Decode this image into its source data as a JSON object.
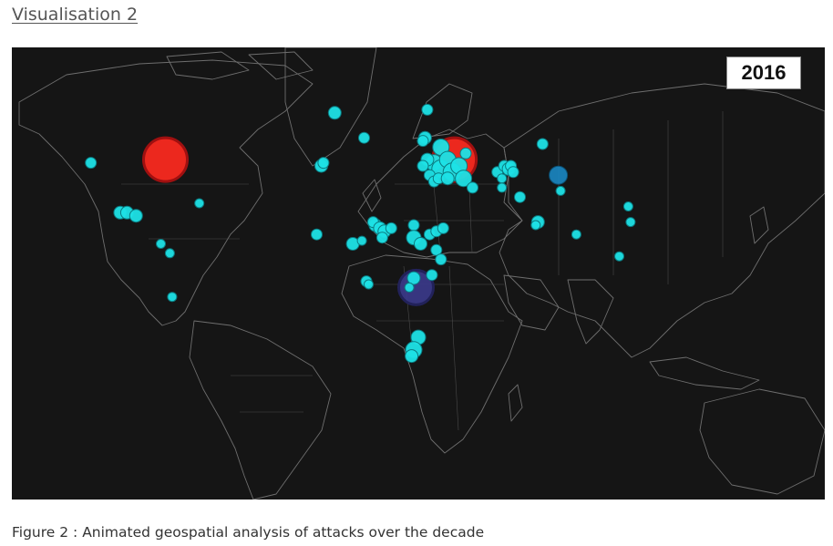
{
  "heading": "Visualisation 2",
  "year": "2016",
  "caption": "Figure 2 : Animated geospatial analysis of attacks over the decade",
  "colors": {
    "background": "#151515",
    "land_border": "#6e6e6e",
    "marker_default": "#1de1e6",
    "marker_stroke": "#0b7a80",
    "marker_large_red": "#ff2a1f",
    "marker_large_purple": "#3b3a8a",
    "marker_blue": "#1a86c0"
  },
  "markers": [
    {
      "label": "north-america-large",
      "lon": -97,
      "lat": 49,
      "r": 24,
      "color": "#ff2a1f",
      "stroke": "#a01010"
    },
    {
      "label": "ukraine-large",
      "lon": 31,
      "lat": 49,
      "r": 24,
      "color": "#ff2a1f",
      "stroke": "#a01010"
    },
    {
      "label": "central-africa-large",
      "lon": 14,
      "lat": 8,
      "r": 19,
      "color": "#3b3a8a",
      "stroke": "#22225a"
    },
    {
      "label": "central-asia",
      "lon": 77,
      "lat": 44,
      "r": 10,
      "color": "#1a86c0",
      "stroke": "#0b4e70"
    },
    {
      "lon": -22,
      "lat": 64,
      "r": 7
    },
    {
      "lon": -130,
      "lat": 48,
      "r": 6
    },
    {
      "lon": -117,
      "lat": 32,
      "r": 7
    },
    {
      "lon": -114,
      "lat": 32,
      "r": 7
    },
    {
      "lon": -110,
      "lat": 31,
      "r": 7
    },
    {
      "lon": -82,
      "lat": 35,
      "r": 5
    },
    {
      "lon": -99,
      "lat": 22,
      "r": 5
    },
    {
      "lon": -95,
      "lat": 19,
      "r": 5
    },
    {
      "lon": -94,
      "lat": 5,
      "r": 5
    },
    {
      "lon": -9,
      "lat": 56,
      "r": 6
    },
    {
      "lon": -28,
      "lat": 47,
      "r": 7
    },
    {
      "lon": -27,
      "lat": 48,
      "r": 6
    },
    {
      "lon": -30,
      "lat": 25,
      "r": 6
    },
    {
      "lon": -14,
      "lat": 22,
      "r": 7
    },
    {
      "lon": -10,
      "lat": 23,
      "r": 5
    },
    {
      "lon": -4,
      "lat": 28,
      "r": 7
    },
    {
      "lon": -5,
      "lat": 29,
      "r": 6
    },
    {
      "lon": -2,
      "lat": 27,
      "r": 7
    },
    {
      "lon": 0,
      "lat": 26,
      "r": 7
    },
    {
      "lon": 3,
      "lat": 27,
      "r": 6
    },
    {
      "lon": -1,
      "lat": 24,
      "r": 6
    },
    {
      "lon": -8,
      "lat": 10,
      "r": 6
    },
    {
      "lon": -7,
      "lat": 9,
      "r": 5
    },
    {
      "lon": 13,
      "lat": 28,
      "r": 6
    },
    {
      "lon": 13,
      "lat": 24,
      "r": 8
    },
    {
      "lon": 16,
      "lat": 22,
      "r": 7
    },
    {
      "lon": 20,
      "lat": 25,
      "r": 6
    },
    {
      "lon": 23,
      "lat": 26,
      "r": 6
    },
    {
      "lon": 26,
      "lat": 27,
      "r": 6
    },
    {
      "lon": 23,
      "lat": 20,
      "r": 6
    },
    {
      "lon": 25,
      "lat": 17,
      "r": 6
    },
    {
      "lon": 13,
      "lat": 11,
      "r": 7
    },
    {
      "lon": 11,
      "lat": 8,
      "r": 5
    },
    {
      "lon": 21,
      "lat": 12,
      "r": 6
    },
    {
      "lon": 15,
      "lat": -8,
      "r": 8
    },
    {
      "lon": 13,
      "lat": -12,
      "r": 9
    },
    {
      "lon": 12,
      "lat": -14,
      "r": 7
    },
    {
      "lon": 19,
      "lat": 65,
      "r": 6
    },
    {
      "lon": 18,
      "lat": 56,
      "r": 7
    },
    {
      "lon": 17,
      "lat": 55,
      "r": 6
    },
    {
      "lon": 25,
      "lat": 53,
      "r": 9
    },
    {
      "lon": 22,
      "lat": 48,
      "r": 9
    },
    {
      "lon": 25,
      "lat": 46,
      "r": 10
    },
    {
      "lon": 19,
      "lat": 49,
      "r": 7
    },
    {
      "lon": 17,
      "lat": 47,
      "r": 6
    },
    {
      "lon": 28,
      "lat": 49,
      "r": 9
    },
    {
      "lon": 30,
      "lat": 45,
      "r": 10
    },
    {
      "lon": 33,
      "lat": 47,
      "r": 9
    },
    {
      "lon": 35,
      "lat": 43,
      "r": 9
    },
    {
      "lon": 36,
      "lat": 51,
      "r": 6
    },
    {
      "lon": 20,
      "lat": 44,
      "r": 6
    },
    {
      "lon": 22,
      "lat": 42,
      "r": 6
    },
    {
      "lon": 24,
      "lat": 43,
      "r": 6
    },
    {
      "lon": 28,
      "lat": 43,
      "r": 7
    },
    {
      "lon": 39,
      "lat": 40,
      "r": 6
    },
    {
      "lon": 50,
      "lat": 45,
      "r": 6
    },
    {
      "lon": 53,
      "lat": 47,
      "r": 6
    },
    {
      "lon": 55,
      "lat": 46,
      "r": 7
    },
    {
      "lon": 56,
      "lat": 47,
      "r": 6
    },
    {
      "lon": 57,
      "lat": 45,
      "r": 6
    },
    {
      "lon": 52,
      "lat": 43,
      "r": 5
    },
    {
      "lon": 52,
      "lat": 40,
      "r": 5
    },
    {
      "lon": 60,
      "lat": 37,
      "r": 6
    },
    {
      "lon": 70,
      "lat": 54,
      "r": 6
    },
    {
      "lon": 78,
      "lat": 39,
      "r": 5
    },
    {
      "lon": 68,
      "lat": 29,
      "r": 7
    },
    {
      "lon": 67,
      "lat": 28,
      "r": 5
    },
    {
      "lon": 85,
      "lat": 25,
      "r": 5
    },
    {
      "lon": 108,
      "lat": 34,
      "r": 5
    },
    {
      "lon": 109,
      "lat": 29,
      "r": 5
    },
    {
      "lon": 104,
      "lat": 18,
      "r": 5
    }
  ]
}
